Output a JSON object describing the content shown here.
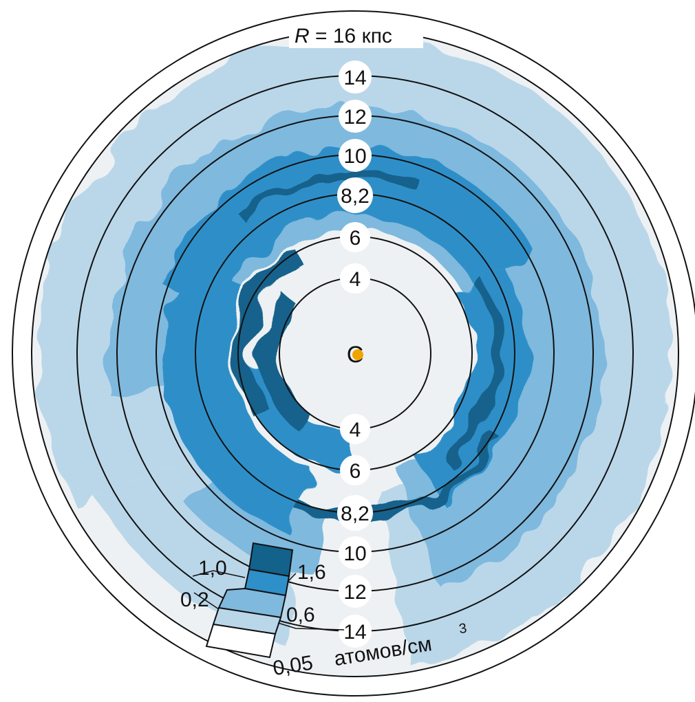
{
  "diagram": {
    "top_label_r": "R",
    "top_label_eq": " = 16 кпс",
    "center_label": "C",
    "rings_top": [
      "14",
      "12",
      "10",
      "8,2",
      "6",
      "4"
    ],
    "rings_bottom": [
      "4",
      "6",
      "8,2",
      "10",
      "12",
      "14"
    ],
    "legend": {
      "labels": {
        "l10": "1,0",
        "l16": "1,6",
        "l02": "0,2",
        "l06": "0,6",
        "l005": "0,05",
        "unit": "атомов/см",
        "unit_sup": "3"
      }
    },
    "colors": {
      "level_005": "#f0f2f3",
      "level_02": "#bad7ea",
      "level_06": "#7fb9de",
      "level_10": "#2f8fc8",
      "level_16": "#12628c",
      "sun_dot": "#f0a400",
      "outline": "#111111"
    }
  }
}
